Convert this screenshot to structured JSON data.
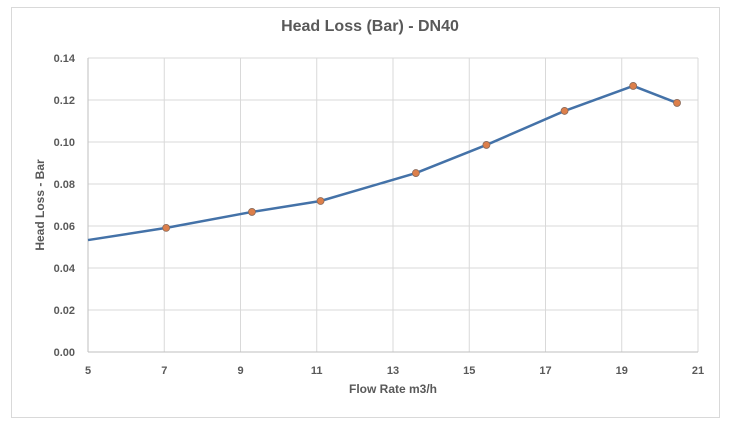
{
  "chart_data": {
    "type": "line",
    "title": "Head Loss  (Bar) - DN40",
    "xlabel": "Flow Rate m3/h",
    "ylabel": "Head Loss - Bar",
    "xlim": [
      5,
      21
    ],
    "ylim": [
      0,
      0.14
    ],
    "xticks": [
      "5",
      "7",
      "9",
      "11",
      "13",
      "15",
      "17",
      "19",
      "21"
    ],
    "yticks": [
      "0.00",
      "0.02",
      "0.04",
      "0.06",
      "0.08",
      "0.10",
      "0.12",
      "0.14"
    ],
    "grid": true,
    "legend": null,
    "series": [
      {
        "name": "Head Loss",
        "line_color": "#4472a8",
        "marker_color": "#dd7f4a",
        "x": [
          5.0,
          7.05,
          9.3,
          11.1,
          13.6,
          15.45,
          17.5,
          19.3,
          20.45
        ],
        "y": [
          0.0533,
          0.0591,
          0.0667,
          0.0719,
          0.0852,
          0.0986,
          0.1148,
          0.1267,
          0.1186
        ],
        "markers": [
          false,
          true,
          true,
          true,
          true,
          true,
          true,
          true,
          true
        ]
      }
    ]
  }
}
